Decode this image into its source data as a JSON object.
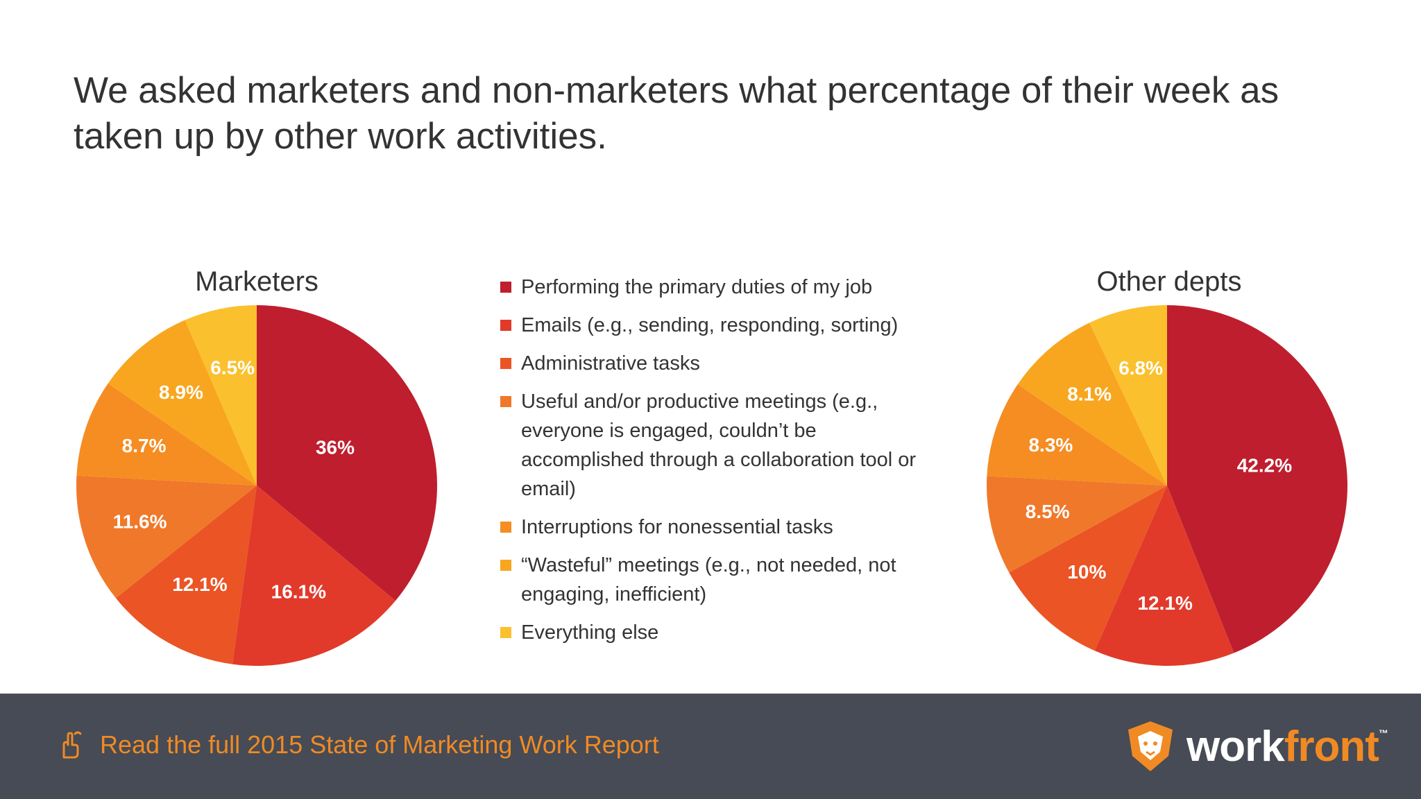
{
  "headline": "We asked marketers and non-marketers what percentage of their week as taken up by other work activities.",
  "colors": [
    "#bf1e2e",
    "#e13a2b",
    "#eb5424",
    "#f0782a",
    "#f58d22",
    "#f8a61f",
    "#fbc02e"
  ],
  "legend": [
    {
      "label": "Performing the primary duties of my job"
    },
    {
      "label": "Emails (e.g., sending, responding, sorting)"
    },
    {
      "label": "Administrative tasks"
    },
    {
      "label": "Useful and/or productive meetings (e.g., everyone is engaged, couldn’t be accomplished through a collaboration tool or email)"
    },
    {
      "label": "Interruptions for nonessential tasks"
    },
    {
      "label": "“Wasteful” meetings (e.g., not needed, not engaging, inefficient)"
    },
    {
      "label": "Everything else"
    }
  ],
  "chart_data": [
    {
      "type": "pie",
      "title": "Marketers",
      "categories": [
        "Performing the primary duties of my job",
        "Emails (e.g., sending, responding, sorting)",
        "Administrative tasks",
        "Useful and/or productive meetings (e.g., everyone is engaged, couldn’t be accomplished through a collaboration tool or email)",
        "Interruptions for nonessential tasks",
        "“Wasteful” meetings (e.g., not needed, not engaging, inefficient)",
        "Everything else"
      ],
      "values": [
        36,
        16.1,
        12.1,
        11.6,
        8.7,
        8.9,
        6.5
      ],
      "labels": [
        "36%",
        "16.1%",
        "12.1%",
        "11.6%",
        "8.7%",
        "8.9%",
        "6.5%"
      ],
      "legend": "center"
    },
    {
      "type": "pie",
      "title": "Other depts",
      "categories": [
        "Performing the primary duties of my job",
        "Emails (e.g., sending, responding, sorting)",
        "Administrative tasks",
        "Useful and/or productive meetings (e.g., everyone is engaged, couldn’t be accomplished through a collaboration tool or email)",
        "Interruptions for nonessential tasks",
        "“Wasteful” meetings (e.g., not needed, not engaging, inefficient)",
        "Everything else"
      ],
      "values": [
        42.2,
        12.1,
        10,
        8.5,
        8.3,
        8.1,
        6.8
      ],
      "labels": [
        "42.2%",
        "12.1%",
        "10%",
        "8.5%",
        "8.3%",
        "8.1%",
        "6.8%"
      ],
      "legend": "center"
    }
  ],
  "footer": {
    "link_text": "Read the full 2015 State of Marketing Work Report",
    "icon": "pointer-hand-icon",
    "logo_work": "work",
    "logo_front": "front",
    "logo_mark": "workfront-lion-icon"
  }
}
